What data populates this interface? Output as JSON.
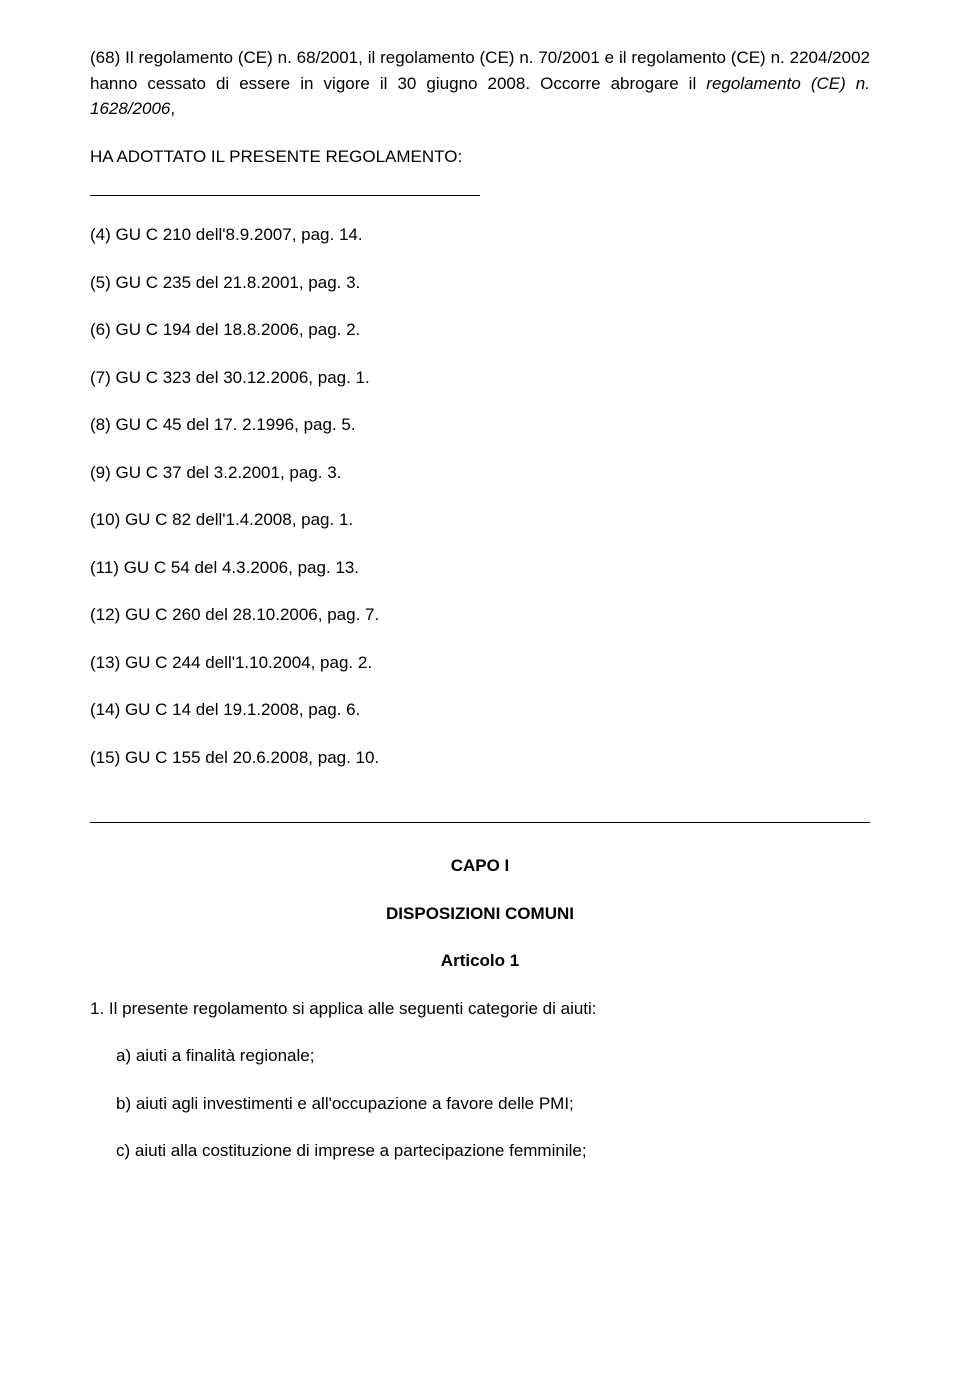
{
  "intro": {
    "before_italic": "(68) Il regolamento (CE) n. 68/2001, il regolamento (CE) n. 70/2001 e il regolamento (CE) n. 2204/2002 hanno cessato di essere in vigore il 30 giugno 2008. Occorre abrogare il ",
    "italic": "regolamento (CE) n. 1628/2006",
    "after_italic": ","
  },
  "adopted": "HA ADOTTATO IL PRESENTE REGOLAMENTO:",
  "footnotes": [
    "(4)  GU C 210 dell'8.9.2007, pag. 14.",
    "(5)  GU C 235 del 21.8.2001, pag. 3.",
    "(6)  GU C 194 del 18.8.2006, pag. 2.",
    "(7)  GU C 323 del 30.12.2006, pag. 1.",
    "(8)  GU C 45 del 17. 2.1996, pag. 5.",
    "(9)  GU C 37 del 3.2.2001, pag. 3.",
    "(10)  GU C 82 dell'1.4.2008, pag. 1.",
    "(11)  GU C 54 del 4.3.2006, pag. 13.",
    "(12)  GU C 260 del 28.10.2006, pag. 7.",
    "(13)  GU C 244 dell'1.10.2004, pag. 2.",
    "(14)  GU C 14 del 19.1.2008, pag. 6.",
    "(15)  GU C 155 del 20.6.2008, pag. 10."
  ],
  "chapter": "CAPO I",
  "chapter_sub": "DISPOSIZIONI COMUNI",
  "article": "Articolo 1",
  "para1": "1. Il presente regolamento si applica alle seguenti categorie di aiuti:",
  "items": {
    "a": "a) aiuti a finalità regionale;",
    "b": "b) aiuti agli investimenti e all'occupazione a favore delle PMI;",
    "c": "c) aiuti alla costituzione di imprese a partecipazione femminile;"
  }
}
